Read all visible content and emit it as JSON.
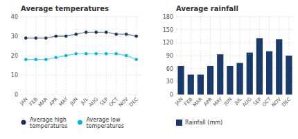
{
  "chart_data": [
    {
      "type": "line",
      "title": "Average temperatures",
      "categories": [
        "JAN",
        "FEB",
        "MAR",
        "APR",
        "MAY",
        "JUN",
        "JUL",
        "AUG",
        "SEP",
        "OCT",
        "NOV",
        "DEC"
      ],
      "series": [
        {
          "name": "Average high\ntemperatures",
          "color": "#1a2e5a",
          "marker": "circle",
          "values": [
            29,
            29,
            29,
            30,
            30,
            31,
            32,
            32,
            32,
            31,
            31,
            30
          ]
        },
        {
          "name": "Average low\ntemperatures",
          "color": "#00b8d8",
          "marker": "circle",
          "values": [
            18,
            18,
            18,
            19,
            20,
            21,
            21,
            21,
            21,
            21,
            20,
            18
          ]
        }
      ],
      "ylim": [
        0,
        40
      ],
      "yticks": [
        0,
        10,
        20,
        30,
        40
      ],
      "grid": true,
      "legend": "bottom"
    },
    {
      "type": "bar",
      "title": "Average rainfall",
      "categories": [
        "JAN",
        "FEB",
        "MAR",
        "APR",
        "MAY",
        "JUN",
        "JUL",
        "AUG",
        "SEP",
        "OCT",
        "NOV",
        "DEC"
      ],
      "series": [
        {
          "name": "Rainfall (mm)",
          "color": "#1a3a6b",
          "values": [
            66,
            46,
            46,
            66,
            93,
            66,
            73,
            97,
            130,
            100,
            128,
            90
          ]
        }
      ],
      "ylim": [
        0,
        180
      ],
      "yticks": [
        0,
        30,
        60,
        90,
        120,
        150,
        180
      ],
      "grid": true,
      "legend": "bottom"
    }
  ]
}
